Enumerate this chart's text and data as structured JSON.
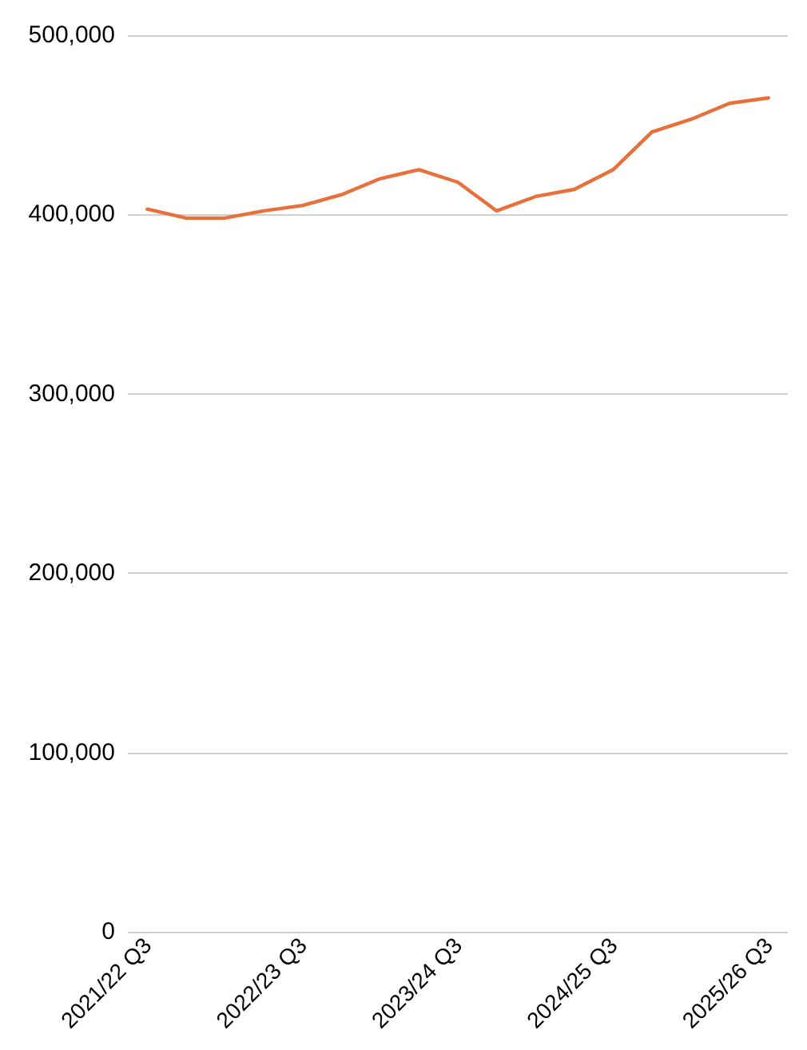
{
  "chart_data": {
    "type": "line",
    "categories": [
      "2021/22 Q3",
      null,
      null,
      null,
      "2022/23 Q3",
      null,
      null,
      null,
      "2023/24 Q3",
      null,
      null,
      null,
      "2024/25 Q3",
      null,
      null,
      null,
      "2025/26 Q3"
    ],
    "series": [
      {
        "color": "#e8703a",
        "values": [
          403000,
          398000,
          398000,
          402000,
          405000,
          411000,
          420000,
          425000,
          418000,
          402000,
          410000,
          414000,
          425000,
          446000,
          453000,
          462000,
          465000
        ]
      }
    ],
    "ylim": [
      0,
      500000
    ],
    "yticks": [
      0,
      {
        "value": 100000,
        "label": "100,000"
      },
      {
        "value": 200000,
        "label": "200,000"
      },
      {
        "value": 300000,
        "label": "300,000"
      },
      {
        "value": 400000,
        "label": "400,000"
      },
      {
        "value": 500000,
        "label": "500,000"
      }
    ],
    "grid": "y",
    "marker": "none",
    "line_style": "solid"
  }
}
